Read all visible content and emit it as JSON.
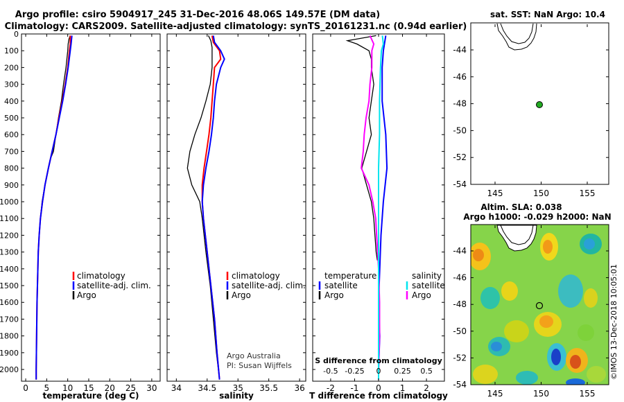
{
  "header": {
    "title_line1": "Argo profile: csiro 5904917_245 31-Dec-2016 48.06S 149.57E (DM data)",
    "title_line2": "Climatology: CARS2009. Satellite-adjusted climatology: synTS_20161231.nc (0.94d earlier)"
  },
  "colors": {
    "argo": "#000000",
    "climatology": "#ff0000",
    "satellite": "#0000ff",
    "salinity_diff_sat": "#00e5ee",
    "salinity_diff_argo": "#ff00ff",
    "float_marker": "#22aa22"
  },
  "depth_axis": {
    "ticks": [
      0,
      100,
      200,
      300,
      400,
      500,
      600,
      700,
      800,
      900,
      1000,
      1100,
      1200,
      1300,
      1400,
      1500,
      1600,
      1700,
      1800,
      1900,
      2000
    ],
    "range": [
      0,
      2070
    ]
  },
  "chart_data": [
    {
      "type": "line",
      "panel": "temperature",
      "xlabel": "temperature (deg C)",
      "xlim": [
        -1,
        32
      ],
      "xticks": [
        0,
        5,
        10,
        15,
        20,
        25,
        30
      ],
      "ylim": [
        2070,
        0
      ],
      "legend": [
        "climatology",
        "satellite-adj. clim.",
        "Argo"
      ],
      "series": [
        {
          "name": "Argo",
          "depth": [
            10,
            30,
            60,
            100,
            200,
            300,
            400,
            500,
            600,
            700,
            750,
            800,
            900,
            1000,
            1100,
            1200,
            1300,
            1400,
            1500,
            1600,
            1800,
            2000,
            2060
          ],
          "values": [
            10.6,
            10.3,
            10.1,
            10.0,
            9.6,
            9.0,
            8.5,
            7.8,
            7.2,
            6.6,
            5.8,
            5.4,
            4.6,
            3.9,
            3.5,
            3.2,
            3.0,
            2.9,
            2.8,
            2.7,
            2.6,
            2.5,
            2.5
          ]
        },
        {
          "name": "climatology",
          "depth": [
            10,
            60,
            100,
            200,
            300,
            400,
            500,
            600,
            700,
            800,
            900,
            1000,
            1100,
            1200,
            1300,
            1400,
            1600,
            1800,
            2000,
            2060
          ],
          "values": [
            10.6,
            10.6,
            10.4,
            10.0,
            9.4,
            8.7,
            7.9,
            7.2,
            6.3,
            5.4,
            4.6,
            4.0,
            3.5,
            3.2,
            3.0,
            2.9,
            2.7,
            2.6,
            2.5,
            2.5
          ]
        },
        {
          "name": "satellite-adj. clim.",
          "depth": [
            10,
            60,
            100,
            200,
            300,
            400,
            500,
            600,
            700,
            800,
            900,
            1000,
            1100,
            1200,
            1300,
            1400,
            1600,
            1800,
            2000,
            2060
          ],
          "values": [
            11.0,
            10.8,
            10.6,
            10.1,
            9.5,
            8.8,
            8.0,
            7.2,
            6.3,
            5.4,
            4.6,
            4.0,
            3.5,
            3.2,
            3.0,
            2.9,
            2.7,
            2.6,
            2.5,
            2.5
          ]
        }
      ]
    },
    {
      "type": "line",
      "panel": "salinity",
      "xlabel": "salinity",
      "xlim": [
        33.85,
        36.1
      ],
      "xticks": [
        34,
        34.5,
        35,
        35.5,
        36
      ],
      "ylim": [
        2070,
        0
      ],
      "legend": [
        "climatology",
        "satellite-adj. clim.",
        "Argo"
      ],
      "annotation": [
        "Argo Australia",
        "PI: Susan Wijffels"
      ],
      "series": [
        {
          "name": "Argo",
          "depth": [
            10,
            40,
            80,
            130,
            200,
            300,
            400,
            500,
            600,
            700,
            800,
            900,
            1000,
            1100,
            1300,
            1500,
            1700,
            1900,
            2060
          ],
          "values": [
            34.52,
            34.56,
            34.58,
            34.58,
            34.58,
            34.55,
            34.48,
            34.4,
            34.3,
            34.22,
            34.18,
            34.25,
            34.38,
            34.42,
            34.48,
            34.55,
            34.6,
            34.65,
            34.7
          ]
        },
        {
          "name": "climatology",
          "depth": [
            10,
            50,
            100,
            150,
            200,
            300,
            400,
            500,
            600,
            700,
            800,
            900,
            1000,
            1100,
            1300,
            1500,
            1700,
            1900,
            2060
          ],
          "values": [
            34.58,
            34.6,
            34.7,
            34.72,
            34.62,
            34.6,
            34.58,
            34.56,
            34.53,
            34.49,
            34.45,
            34.42,
            34.42,
            34.44,
            34.5,
            34.56,
            34.62,
            34.66,
            34.7
          ]
        },
        {
          "name": "satellite-adj. clim.",
          "depth": [
            10,
            50,
            100,
            150,
            200,
            300,
            400,
            500,
            600,
            700,
            800,
            900,
            1000,
            1100,
            1300,
            1500,
            1700,
            1900,
            2060
          ],
          "values": [
            34.6,
            34.62,
            34.72,
            34.78,
            34.72,
            34.65,
            34.62,
            34.6,
            34.57,
            34.53,
            34.48,
            34.44,
            34.42,
            34.44,
            34.5,
            34.56,
            34.62,
            34.66,
            34.7
          ]
        }
      ]
    },
    {
      "type": "line",
      "panel": "differences",
      "xlabel": "T difference from climatology",
      "xlabel_top": "S difference from climatology",
      "xlim": [
        -2.75,
        2.75
      ],
      "xticks": [
        -2,
        -1,
        0,
        1,
        2
      ],
      "xticks_top": [
        "-0.5",
        "-0.25",
        "0",
        "0.25",
        "0.5"
      ],
      "ylim": [
        2070,
        0
      ],
      "legend": {
        "temperature": [
          "satellite",
          "Argo"
        ],
        "salinity": [
          "satellite",
          "Argo"
        ]
      },
      "series": [
        {
          "name": "T Argo",
          "depth": [
            10,
            40,
            60,
            100,
            150,
            200,
            300,
            400,
            500,
            600,
            700,
            800,
            900,
            1000,
            1100,
            1200,
            1300,
            1350
          ],
          "values": [
            -0.1,
            -1.3,
            -0.9,
            -0.4,
            -0.3,
            -0.3,
            -0.2,
            -0.3,
            -0.4,
            -0.3,
            -0.5,
            -0.7,
            -0.5,
            -0.3,
            -0.2,
            -0.15,
            -0.1,
            -0.05
          ]
        },
        {
          "name": "T satellite",
          "depth": [
            10,
            100,
            200,
            400,
            600,
            800,
            1000,
            1200,
            1400,
            1600,
            1800,
            2000,
            2060
          ],
          "values": [
            0.3,
            0.2,
            0.15,
            0.15,
            0.3,
            0.35,
            0.2,
            0.1,
            0.05,
            0.0,
            0.05,
            0.0,
            0.0
          ]
        },
        {
          "name": "S Argo",
          "depth": [
            10,
            60,
            100,
            200,
            300,
            400,
            500,
            600,
            700,
            800,
            900,
            1000,
            1100,
            1200,
            1300,
            1400,
            1600,
            1800,
            2000,
            2060
          ],
          "values": [
            -0.09,
            -0.05,
            -0.07,
            -0.07,
            -0.09,
            -0.1,
            -0.13,
            -0.15,
            -0.16,
            -0.18,
            -0.1,
            -0.06,
            -0.03,
            -0.02,
            -0.01,
            0.0,
            0.01,
            0.01,
            0.0,
            0.0
          ]
        },
        {
          "name": "S satellite",
          "depth": [
            10,
            60,
            100,
            200,
            400,
            600,
            800,
            1000,
            1200,
            1400,
            1600,
            1800,
            2000,
            2060
          ],
          "values": [
            0.04,
            0.05,
            0.03,
            0.02,
            0.01,
            0.01,
            0.0,
            0.0,
            0.0,
            0.0,
            0.0,
            0.0,
            0.0,
            0.0
          ]
        }
      ]
    }
  ],
  "map_top": {
    "title": "sat. SST: NaN Argo: 10.4",
    "yticks": [
      "-44",
      "-46",
      "-48",
      "-50",
      "-52",
      "-54"
    ],
    "xticks": [
      "145",
      "150",
      "155"
    ],
    "marker_lon": 149.57,
    "marker_lat": -48.06
  },
  "map_bottom": {
    "title_line1": "Altim. SLA: 0.038",
    "title_line2": "Argo h1000: -0.029 h2000: NaN",
    "yticks": [
      "-44",
      "-46",
      "-48",
      "-50",
      "-52",
      "-54"
    ],
    "xticks": [
      "145",
      "150",
      "155"
    ],
    "marker_lon": 149.57,
    "marker_lat": -48.06
  },
  "footer": {
    "watermark": "©IMOS 13-Dec-2018 10:05:01"
  }
}
